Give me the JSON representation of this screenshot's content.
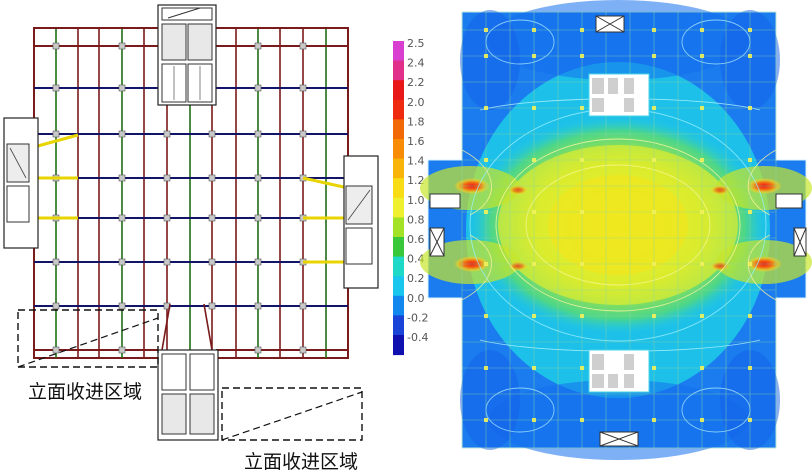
{
  "plan": {
    "annotations": [
      {
        "text": "立面收进区域"
      },
      {
        "text": "立面收进区域"
      }
    ]
  },
  "legend": {
    "ticks": [
      "2.5",
      "2.4",
      "2.2",
      "2.0",
      "1.8",
      "1.6",
      "1.4",
      "1.2",
      "1.0",
      "0.8",
      "0.6",
      "0.4",
      "0.2",
      "0.0",
      "-0.2",
      "-0.4"
    ],
    "colors": [
      "#d83fd0",
      "#e0308a",
      "#e81818",
      "#ee2a10",
      "#f26a08",
      "#f88c06",
      "#f9b40a",
      "#f8dc16",
      "#eef030",
      "#a4e228",
      "#38c83a",
      "#1ed8c8",
      "#18c6ee",
      "#1288ee",
      "#1a44d8",
      "#1010b0"
    ]
  },
  "colors": {
    "beam_red": "#7a1a1a",
    "beam_navy": "#12146a",
    "beam_green": "#1f6e14",
    "beam_yellow": "#e8d400",
    "contour_blue": "#1566f0",
    "contour_cyan": "#1ed8e6",
    "contour_yellow": "#eef23a"
  }
}
